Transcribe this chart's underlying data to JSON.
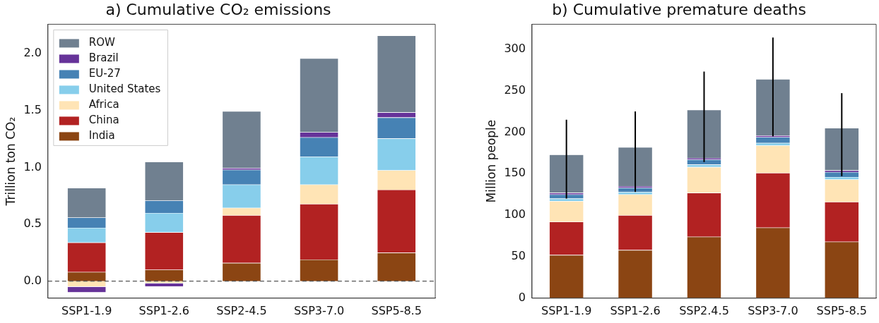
{
  "chart_data": [
    {
      "type": "bar",
      "title": "a) Cumulative CO₂ emissions",
      "ylabel": "Trillion ton CO₂",
      "categories": [
        "SSP1-1.9",
        "SSP1-2.6",
        "SSP2-4.5",
        "SSP3-7.0",
        "SSP5-8.5"
      ],
      "stacked": true,
      "ylim": [
        -0.15,
        2.26
      ],
      "yticks": [
        {
          "value": 0,
          "label": "0.0"
        },
        {
          "value": 0.5,
          "label": "0.5"
        },
        {
          "value": 1,
          "label": "1.0"
        },
        {
          "value": 1.5,
          "label": "1.5"
        },
        {
          "value": 2,
          "label": "2.0"
        }
      ],
      "grid": false,
      "legend": "top left",
      "ref_lines": [
        {
          "axis": "y",
          "value": 0,
          "color": "#555555",
          "line_style": "dashed"
        }
      ],
      "series": [
        {
          "name": "India",
          "color": "#8b4513",
          "values": [
            0.08,
            0.1,
            0.16,
            0.19,
            0.25
          ]
        },
        {
          "name": "China",
          "color": "#b22222",
          "values": [
            0.26,
            0.33,
            0.42,
            0.49,
            0.555
          ]
        },
        {
          "name": "Africa",
          "color": "#ffe4b5",
          "values": [
            -0.05,
            -0.02,
            0.065,
            0.17,
            0.17
          ]
        },
        {
          "name": "United States",
          "color": "#87ceeb",
          "values": [
            0.13,
            0.17,
            0.205,
            0.245,
            0.28
          ]
        },
        {
          "name": "EU-27",
          "color": "#4682b4",
          "values": [
            0.09,
            0.11,
            0.13,
            0.17,
            0.185
          ]
        },
        {
          "name": "Brazil",
          "color": "#663399",
          "values": [
            -0.05,
            -0.03,
            0.015,
            0.045,
            0.045
          ]
        },
        {
          "name": "ROW",
          "color": "#708090",
          "values": [
            0.26,
            0.34,
            0.5,
            0.65,
            0.675
          ]
        }
      ]
    },
    {
      "type": "bar",
      "title": "b) Cumulative premature deaths",
      "ylabel": "Million people",
      "categories": [
        "SSP1-1.9",
        "SSP1-2.6",
        "SSP2.4.5",
        "SSP3-7.0",
        "SSP5-8.5"
      ],
      "stacked": true,
      "ylim": [
        0,
        330
      ],
      "yticks": [
        0,
        50,
        100,
        150,
        200,
        250,
        300
      ],
      "grid": false,
      "series": [
        {
          "color": "#8b4513",
          "values": [
            52,
            58,
            74,
            85,
            68
          ]
        },
        {
          "color": "#b22222",
          "values": [
            40,
            42,
            53,
            66,
            48
          ]
        },
        {
          "color": "#ffe4b5",
          "values": [
            25,
            25,
            31,
            33,
            27
          ]
        },
        {
          "color": "#87ceeb",
          "values": [
            3,
            3,
            3,
            3,
            3
          ]
        },
        {
          "color": "#4682b4",
          "values": [
            5,
            5,
            6,
            7,
            6
          ]
        },
        {
          "color": "#663399",
          "values": [
            2,
            2,
            2,
            2,
            2
          ]
        },
        {
          "color": "#708090",
          "values": [
            46,
            47,
            58,
            68,
            51
          ],
          "errors": [
            [
              120,
              215
            ],
            [
              128,
              225
            ],
            [
              164,
              273
            ],
            [
              195,
              314
            ],
            [
              147,
              247
            ]
          ]
        }
      ]
    }
  ]
}
